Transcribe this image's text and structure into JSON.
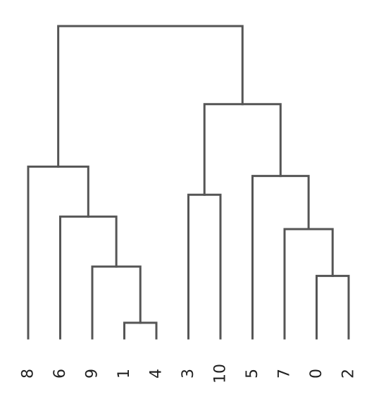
{
  "chart_data": {
    "type": "dendrogram",
    "title": "",
    "xlabel": "",
    "ylabel": "",
    "color": "#555555",
    "leaf_order": [
      "8",
      "6",
      "9",
      "1",
      "4",
      "3",
      "10",
      "5",
      "7",
      "0",
      "2"
    ],
    "merges": [
      {
        "left": "1",
        "right": "4",
        "height": 0.05
      },
      {
        "left": "0",
        "right": "2",
        "height": 0.2
      },
      {
        "left": "9",
        "right": "1+4",
        "height": 0.23
      },
      {
        "left": "7",
        "right": "0+2",
        "height": 0.35
      },
      {
        "left": "6",
        "right": "9+1+4",
        "height": 0.39
      },
      {
        "left": "5",
        "right": "7+0+2",
        "height": 0.52
      },
      {
        "left": "3",
        "right": "10",
        "height": 0.46
      },
      {
        "left": "8",
        "right": "6+9+1+4",
        "height": 0.55
      },
      {
        "left": "3+10",
        "right": "5+7+0+2",
        "height": 0.75
      },
      {
        "left": "8+6+9+1+4",
        "right": "3+10+5+7+0+2",
        "height": 1.0
      }
    ]
  }
}
